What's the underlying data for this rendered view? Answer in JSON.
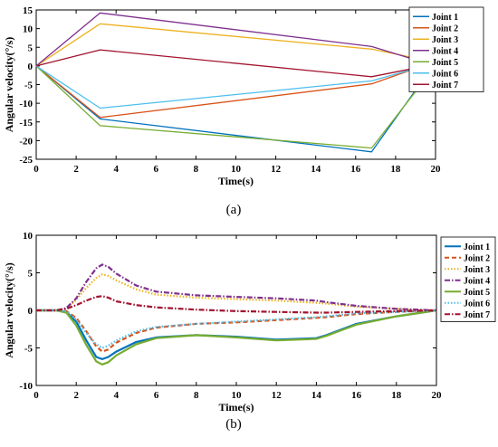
{
  "chart_data": [
    {
      "type": "line",
      "caption": "(a)",
      "xlabel": "Time(s)",
      "ylabel": "Angular velocity(°/s)",
      "xlim": [
        0,
        20
      ],
      "ylim": [
        -25,
        15
      ],
      "xticks": [
        0,
        2,
        4,
        6,
        8,
        10,
        12,
        14,
        16,
        18,
        20
      ],
      "yticks": [
        -25,
        -20,
        -15,
        -10,
        -5,
        0,
        5,
        10,
        15
      ],
      "grid": false,
      "legend_position": "right",
      "x": [
        0,
        3.2,
        16.8,
        20
      ],
      "series": [
        {
          "name": "Joint 1",
          "color": "#0072BD",
          "style": "solid",
          "values": [
            0,
            -14.2,
            -23.0,
            1.0
          ]
        },
        {
          "name": "Joint 2",
          "color": "#D95319",
          "style": "solid",
          "values": [
            0,
            -13.8,
            -4.8,
            1.2
          ]
        },
        {
          "name": "Joint 3",
          "color": "#EDB120",
          "style": "solid",
          "values": [
            0,
            11.3,
            4.5,
            1.0
          ]
        },
        {
          "name": "Joint 4",
          "color": "#7E2F8E",
          "style": "solid",
          "values": [
            0,
            14.2,
            5.2,
            0
          ]
        },
        {
          "name": "Joint 5",
          "color": "#77AC30",
          "style": "solid",
          "values": [
            0,
            -16.0,
            -22.0,
            0
          ]
        },
        {
          "name": "Joint 6",
          "color": "#4DBEEE",
          "style": "solid",
          "values": [
            0,
            -11.3,
            -4.0,
            0.8
          ]
        },
        {
          "name": "Joint 7",
          "color": "#A2142F",
          "style": "solid",
          "values": [
            0,
            4.3,
            -2.9,
            0.5
          ]
        }
      ]
    },
    {
      "type": "line",
      "caption": "(b)",
      "xlabel": "Time(s)",
      "ylabel": "Angular velocity(°/s)",
      "xlim": [
        0,
        20
      ],
      "ylim": [
        -10,
        10
      ],
      "xticks": [
        0,
        2,
        4,
        6,
        8,
        10,
        12,
        14,
        16,
        18,
        20
      ],
      "yticks": [
        -10,
        -5,
        0,
        5,
        10
      ],
      "grid": false,
      "legend_position": "right",
      "x": [
        0,
        1,
        1.5,
        2,
        2.5,
        3,
        3.3,
        3.6,
        4,
        5,
        6,
        8,
        10,
        12,
        14,
        14.5,
        16,
        18,
        20
      ],
      "series": [
        {
          "name": "Joint 1",
          "color": "#0072BD",
          "style": "solid",
          "values": [
            0,
            0,
            -0.2,
            -1.5,
            -4.0,
            -6.2,
            -6.5,
            -6.2,
            -5.5,
            -4.2,
            -3.6,
            -3.3,
            -3.5,
            -3.9,
            -3.7,
            -3.3,
            -1.8,
            -0.8,
            0
          ]
        },
        {
          "name": "Joint 2",
          "color": "#D95319",
          "style": "dashed",
          "values": [
            0,
            0,
            -0.1,
            -1.0,
            -2.8,
            -4.8,
            -5.5,
            -5.2,
            -4.3,
            -3.0,
            -2.3,
            -1.8,
            -1.6,
            -1.3,
            -1.0,
            -0.9,
            -0.5,
            -0.2,
            0
          ]
        },
        {
          "name": "Joint 3",
          "color": "#EDB120",
          "style": "dotted",
          "values": [
            0,
            0,
            0.2,
            1.4,
            3.0,
            4.3,
            4.8,
            4.6,
            4.0,
            2.8,
            2.1,
            1.7,
            1.5,
            1.3,
            1.0,
            0.9,
            0.5,
            0.2,
            0
          ]
        },
        {
          "name": "Joint 4",
          "color": "#7E2F8E",
          "style": "dashdot",
          "values": [
            0,
            0,
            0.3,
            1.6,
            3.8,
            5.6,
            6.1,
            5.8,
            4.9,
            3.3,
            2.5,
            2.0,
            1.8,
            1.6,
            1.3,
            1.1,
            0.6,
            0.2,
            0
          ]
        },
        {
          "name": "Joint 5",
          "color": "#77AC30",
          "style": "solid",
          "values": [
            0,
            0,
            -0.3,
            -2.0,
            -4.6,
            -6.8,
            -7.2,
            -6.9,
            -6.0,
            -4.5,
            -3.7,
            -3.3,
            -3.6,
            -4.0,
            -3.8,
            -3.4,
            -1.9,
            -0.8,
            0
          ]
        },
        {
          "name": "Joint 6",
          "color": "#4DBEEE",
          "style": "dotted",
          "values": [
            0,
            0,
            -0.1,
            -1.2,
            -3.0,
            -4.5,
            -5.0,
            -4.7,
            -4.0,
            -2.8,
            -2.2,
            -1.8,
            -1.5,
            -1.2,
            -0.9,
            -0.8,
            -0.4,
            -0.2,
            0
          ]
        },
        {
          "name": "Joint 7",
          "color": "#A2142F",
          "style": "dashdot",
          "values": [
            0,
            0,
            0.2,
            0.7,
            1.3,
            1.8,
            1.9,
            1.7,
            1.2,
            0.7,
            0.4,
            0.1,
            -0.1,
            -0.2,
            -0.3,
            -0.3,
            -0.2,
            -0.1,
            0
          ]
        }
      ]
    }
  ]
}
